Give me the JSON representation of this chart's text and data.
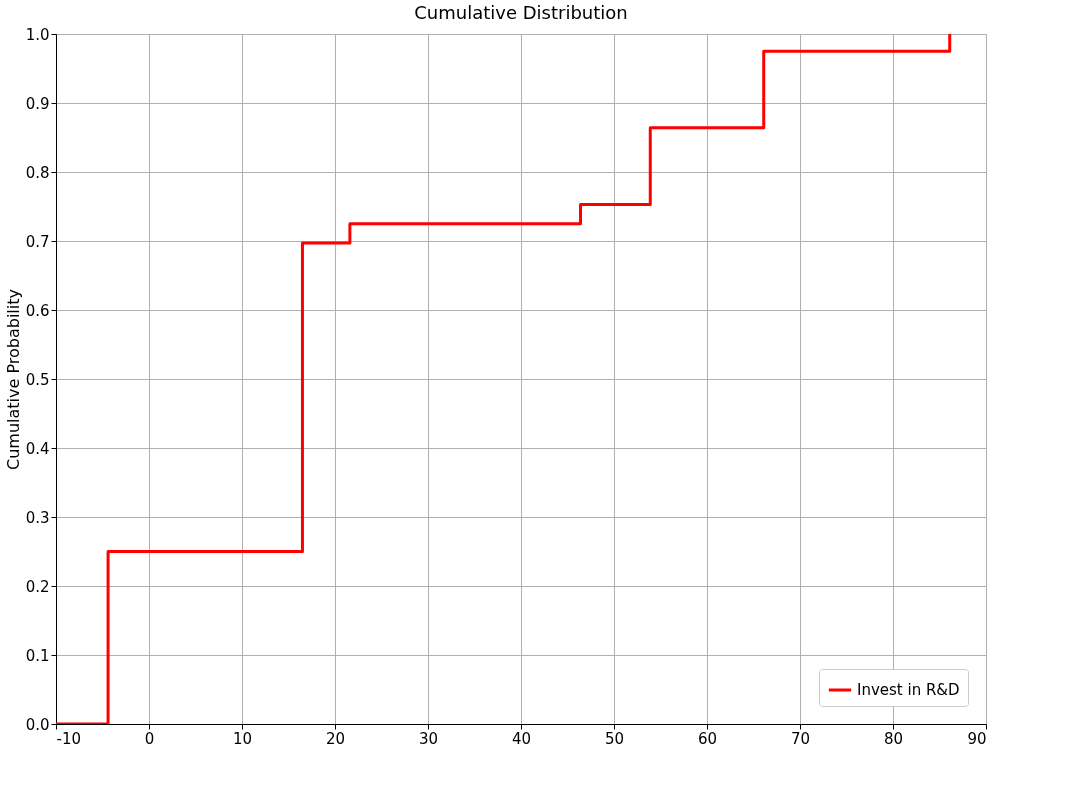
{
  "chart_data": {
    "type": "step",
    "title": "Cumulative Distribution",
    "ylabel": "Cumulative Probability",
    "x": [
      -10,
      -4.4,
      16.5,
      21.6,
      46.4,
      53.9,
      66.1,
      86.1
    ],
    "series": [
      {
        "name": "Invest in R&D",
        "color": "#ff0000",
        "values": [
          0,
          0.25,
          0.697,
          0.725,
          0.753,
          0.864,
          0.975,
          1.0
        ]
      }
    ],
    "xlim": [
      -10,
      90
    ],
    "xticks": [
      -10,
      0,
      10,
      20,
      30,
      40,
      50,
      60,
      70,
      80,
      90
    ],
    "ylim": [
      0,
      1.0
    ],
    "yticks": [
      {
        "value": 0,
        "label": "0.0"
      },
      0.1,
      0.2,
      0.3,
      0.4,
      0.5,
      0.6,
      0.7,
      0.8,
      0.9,
      {
        "value": 1,
        "label": "1.0"
      }
    ],
    "grid": true,
    "legend": "bottom right",
    "line_style": "solid"
  }
}
